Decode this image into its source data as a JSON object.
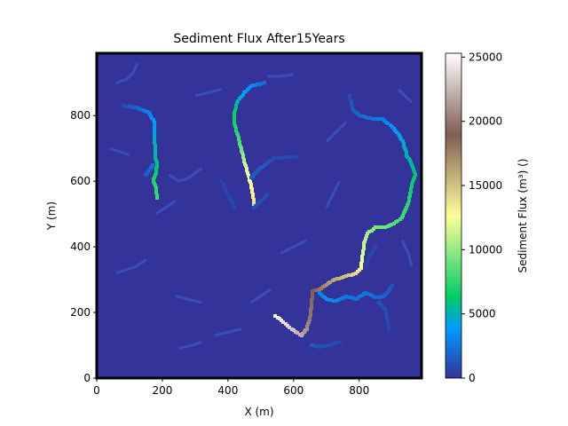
{
  "chart_data": {
    "type": "heatmap",
    "title": "Sediment Flux After15Years",
    "xlabel": "X (m)",
    "ylabel": "Y (m)",
    "xlim": [
      0,
      990
    ],
    "ylim": [
      0,
      990
    ],
    "x_ticks": [
      {
        "value": 0,
        "label": "0"
      },
      {
        "value": 200,
        "label": "200"
      },
      {
        "value": 400,
        "label": "400"
      },
      {
        "value": 600,
        "label": "600"
      },
      {
        "value": 800,
        "label": "800"
      }
    ],
    "y_ticks": [
      {
        "value": 0,
        "label": "0"
      },
      {
        "value": 200,
        "label": "200"
      },
      {
        "value": 400,
        "label": "400"
      },
      {
        "value": 600,
        "label": "600"
      },
      {
        "value": 800,
        "label": "800"
      }
    ],
    "colorbar": {
      "label": "Sediment Flux (m³) ()",
      "range": [
        0,
        25300
      ],
      "colormap": "terrain-like",
      "colormap_stops": [
        {
          "t": 0.0,
          "color": "#333399"
        },
        {
          "t": 0.15,
          "color": "#0099ff"
        },
        {
          "t": 0.25,
          "color": "#00cc66"
        },
        {
          "t": 0.5,
          "color": "#ffff99"
        },
        {
          "t": 0.75,
          "color": "#805e54"
        },
        {
          "t": 1.0,
          "color": "#ffffff"
        }
      ],
      "ticks": [
        {
          "value": 0,
          "label": "0"
        },
        {
          "value": 5000,
          "label": "5000"
        },
        {
          "value": 10000,
          "label": "10000"
        },
        {
          "value": 15000,
          "label": "15000"
        },
        {
          "value": 20000,
          "label": "20000"
        },
        {
          "value": 25000,
          "label": "25000"
        }
      ]
    },
    "background_value": 0,
    "channels": [
      {
        "points": [
          [
            185,
            550,
            8000
          ],
          [
            180,
            580,
            7500
          ],
          [
            172,
            605,
            7000
          ],
          [
            180,
            625,
            6500
          ],
          [
            185,
            650,
            6000
          ],
          [
            178,
            670,
            5500
          ],
          [
            178,
            700,
            5000
          ],
          [
            175,
            740,
            4500
          ],
          [
            175,
            780,
            4000
          ],
          [
            160,
            810,
            3000
          ],
          [
            120,
            825,
            2000
          ],
          [
            80,
            830,
            1000
          ]
        ]
      },
      {
        "points": [
          [
            150,
            620,
            1500
          ],
          [
            165,
            640,
            2000
          ],
          [
            170,
            650,
            2500
          ]
        ]
      },
      {
        "points": [
          [
            480,
            530,
            14000
          ],
          [
            475,
            560,
            13000
          ],
          [
            470,
            590,
            12500
          ],
          [
            460,
            625,
            12000
          ],
          [
            450,
            660,
            11000
          ],
          [
            440,
            700,
            9000
          ],
          [
            430,
            740,
            7500
          ],
          [
            420,
            775,
            7000
          ],
          [
            420,
            810,
            6500
          ],
          [
            430,
            845,
            5000
          ],
          [
            450,
            870,
            4000
          ],
          [
            470,
            890,
            3500
          ],
          [
            510,
            900,
            2000
          ]
        ]
      },
      {
        "points": [
          [
            480,
            520,
            1000
          ],
          [
            500,
            540,
            1000
          ],
          [
            520,
            560,
            1000
          ]
        ]
      },
      {
        "points": [
          [
            470,
            610,
            1500
          ],
          [
            500,
            640,
            1500
          ],
          [
            540,
            670,
            1000
          ],
          [
            610,
            675,
            800
          ]
        ]
      },
      {
        "points": [
          [
            545,
            190,
            25000
          ],
          [
            575,
            165,
            24000
          ],
          [
            600,
            145,
            23000
          ],
          [
            625,
            130,
            22000
          ],
          [
            640,
            150,
            21000
          ],
          [
            650,
            185,
            20000
          ],
          [
            655,
            230,
            19500
          ],
          [
            658,
            265,
            19000
          ],
          [
            680,
            270,
            18000
          ],
          [
            700,
            285,
            17000
          ],
          [
            725,
            300,
            16000
          ],
          [
            760,
            310,
            15000
          ],
          [
            790,
            320,
            14000
          ],
          [
            805,
            335,
            13000
          ],
          [
            810,
            370,
            12000
          ],
          [
            815,
            410,
            11000
          ],
          [
            825,
            440,
            10500
          ],
          [
            850,
            460,
            9500
          ],
          [
            880,
            460,
            9000
          ],
          [
            905,
            470,
            8500
          ],
          [
            930,
            490,
            8000
          ],
          [
            945,
            520,
            7500
          ],
          [
            955,
            555,
            7000
          ],
          [
            960,
            590,
            6500
          ],
          [
            970,
            620,
            6000
          ],
          [
            960,
            650,
            5500
          ],
          [
            945,
            680,
            5000
          ],
          [
            935,
            715,
            4500
          ],
          [
            920,
            745,
            4000
          ],
          [
            900,
            765,
            3500
          ],
          [
            870,
            790,
            3000
          ],
          [
            840,
            790,
            2500
          ],
          [
            800,
            800,
            2000
          ],
          [
            780,
            820,
            1500
          ],
          [
            770,
            860,
            1000
          ]
        ]
      },
      {
        "points": [
          [
            680,
            260,
            3000
          ],
          [
            700,
            240,
            3500
          ],
          [
            730,
            235,
            3000
          ],
          [
            760,
            250,
            2500
          ],
          [
            790,
            240,
            2500
          ],
          [
            820,
            260,
            2500
          ],
          [
            850,
            245,
            2000
          ],
          [
            875,
            250,
            1800
          ],
          [
            890,
            265,
            1500
          ],
          [
            900,
            280,
            1200
          ]
        ]
      },
      {
        "points": [
          [
            655,
            100,
            1500
          ],
          [
            680,
            95,
            1200
          ],
          [
            710,
            100,
            1000
          ],
          [
            740,
            110,
            800
          ]
        ]
      },
      {
        "points": [
          [
            860,
            230,
            1200
          ],
          [
            880,
            210,
            1000
          ],
          [
            885,
            180,
            900
          ],
          [
            890,
            150,
            800
          ]
        ]
      },
      {
        "points": [
          [
            420,
            520,
            800
          ],
          [
            400,
            560,
            700
          ],
          [
            380,
            600,
            600
          ]
        ]
      },
      {
        "points": [
          [
            850,
            400,
            800
          ],
          [
            830,
            370,
            700
          ],
          [
            820,
            340,
            600
          ]
        ]
      }
    ],
    "faint_channels": [
      {
        "points": [
          [
            60,
            900
          ],
          [
            90,
            910
          ],
          [
            110,
            930
          ],
          [
            125,
            960
          ]
        ]
      },
      {
        "points": [
          [
            300,
            860
          ],
          [
            340,
            870
          ],
          [
            380,
            880
          ]
        ]
      },
      {
        "points": [
          [
            520,
            920
          ],
          [
            560,
            920
          ],
          [
            600,
            925
          ]
        ]
      },
      {
        "points": [
          [
            40,
            700
          ],
          [
            70,
            690
          ],
          [
            100,
            680
          ]
        ]
      },
      {
        "points": [
          [
            220,
            620
          ],
          [
            250,
            600
          ],
          [
            280,
            610
          ],
          [
            320,
            640
          ]
        ]
      },
      {
        "points": [
          [
            180,
            500
          ],
          [
            210,
            520
          ],
          [
            240,
            540
          ]
        ]
      },
      {
        "points": [
          [
            60,
            320
          ],
          [
            90,
            330
          ],
          [
            120,
            340
          ],
          [
            150,
            360
          ]
        ]
      },
      {
        "points": [
          [
            240,
            250
          ],
          [
            280,
            240
          ],
          [
            320,
            230
          ]
        ]
      },
      {
        "points": [
          [
            360,
            130
          ],
          [
            400,
            140
          ],
          [
            440,
            150
          ]
        ]
      },
      {
        "points": [
          [
            250,
            90
          ],
          [
            290,
            100
          ],
          [
            320,
            110
          ]
        ]
      },
      {
        "points": [
          [
            560,
            380
          ],
          [
            600,
            400
          ],
          [
            640,
            420
          ]
        ]
      },
      {
        "points": [
          [
            700,
            720
          ],
          [
            730,
            750
          ],
          [
            760,
            780
          ]
        ]
      },
      {
        "points": [
          [
            700,
            520
          ],
          [
            720,
            560
          ],
          [
            740,
            600
          ]
        ]
      },
      {
        "points": [
          [
            920,
            880
          ],
          [
            940,
            860
          ],
          [
            960,
            840
          ]
        ]
      },
      {
        "points": [
          [
            930,
            420
          ],
          [
            950,
            380
          ],
          [
            960,
            340
          ]
        ]
      },
      {
        "points": [
          [
            470,
            230
          ],
          [
            500,
            250
          ],
          [
            530,
            270
          ]
        ]
      }
    ]
  }
}
